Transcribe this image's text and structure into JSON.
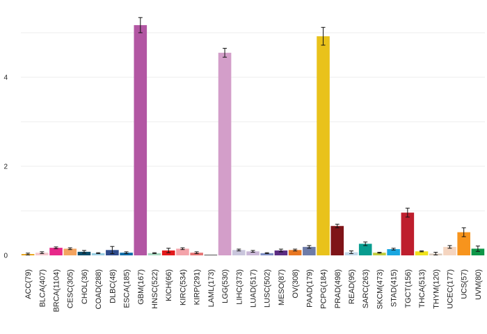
{
  "chart_data": {
    "type": "bar",
    "title": "",
    "xlabel": "",
    "ylabel": "",
    "ylim": [
      0,
      5.5
    ],
    "yticks": [
      0,
      2,
      4
    ],
    "ytick_labels": [
      "0",
      "2",
      "4"
    ],
    "grid": true,
    "error_bars": true,
    "categories": [
      "ACC(79)",
      "BLCA(407)",
      "BRCA(1104)",
      "CESC(305)",
      "CHOL(36)",
      "COAD(288)",
      "DLBC(48)",
      "ESCA(185)",
      "GBM(167)",
      "HNSC(522)",
      "KICH(66)",
      "KIRC(534)",
      "KIRP(291)",
      "LAML(173)",
      "LGG(530)",
      "LIHC(373)",
      "LUAD(517)",
      "LUSC(502)",
      "MESO(87)",
      "OV(308)",
      "PAAD(179)",
      "PCPG(184)",
      "PRAD(498)",
      "READ(95)",
      "SARC(263)",
      "SKCM(473)",
      "STAD(415)",
      "TGCT(156)",
      "THCA(513)",
      "THYM(120)",
      "UCEC(177)",
      "UCS(57)",
      "UVM(80)"
    ],
    "values": [
      0.03,
      0.06,
      0.17,
      0.15,
      0.08,
      0.05,
      0.12,
      0.06,
      5.17,
      0.05,
      0.11,
      0.15,
      0.06,
      0.0,
      4.55,
      0.12,
      0.09,
      0.05,
      0.11,
      0.12,
      0.19,
      4.92,
      0.66,
      0.07,
      0.26,
      0.06,
      0.14,
      0.96,
      0.09,
      0.04,
      0.19,
      0.52,
      0.15
    ],
    "errors": [
      0.02,
      0.02,
      0.02,
      0.02,
      0.03,
      0.01,
      0.08,
      0.02,
      0.17,
      0.01,
      0.05,
      0.02,
      0.02,
      0.0,
      0.1,
      0.02,
      0.02,
      0.01,
      0.03,
      0.02,
      0.03,
      0.2,
      0.04,
      0.03,
      0.04,
      0.01,
      0.02,
      0.1,
      0.01,
      0.03,
      0.03,
      0.1,
      0.06
    ],
    "colors": [
      "#E6A117",
      "#F5C9CF",
      "#E7298A",
      "#F4A460",
      "#0A4C6A",
      "#9ACFE3",
      "#2E4B8B",
      "#0E6CA8",
      "#B256A3",
      "#A8D8C0",
      "#E31A1C",
      "#F4A3AA",
      "#E57373",
      "#222222",
      "#D39EC9",
      "#C9C5DC",
      "#C9B6D6",
      "#7D8EC4",
      "#5B2C83",
      "#E87722",
      "#6D7BA8",
      "#E9C21B",
      "#7F1418",
      "#C2D8EA",
      "#089C8F",
      "#C1CD3D",
      "#1AA6E0",
      "#BE1E2D",
      "#F0E21B",
      "#D9C9BB",
      "#F5D5C0",
      "#F7941D",
      "#0E9648"
    ]
  }
}
